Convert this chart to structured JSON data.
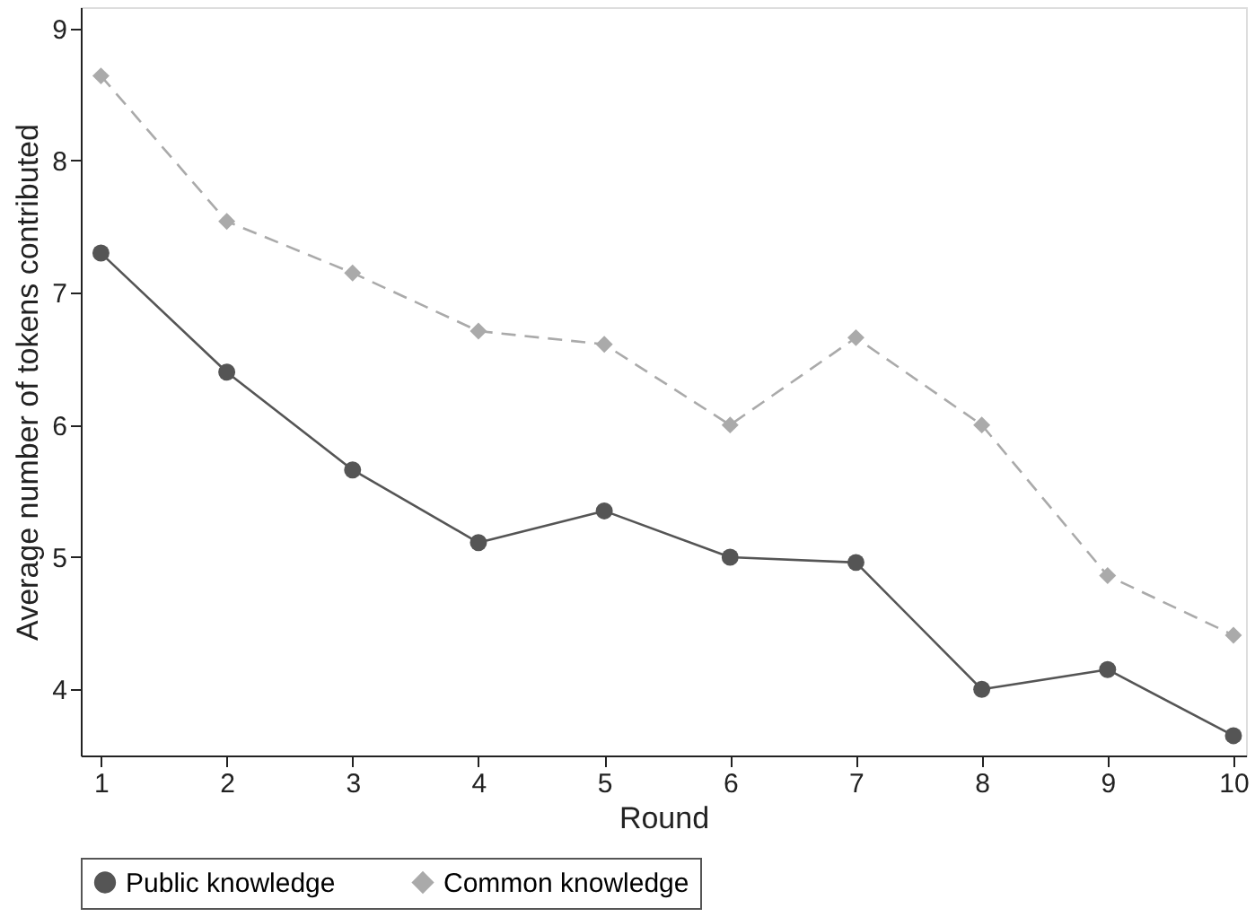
{
  "chart_data": {
    "type": "line",
    "xlabel": "Round",
    "ylabel": "Average number of tokens contributed",
    "x": [
      1,
      2,
      3,
      4,
      5,
      6,
      7,
      8,
      9,
      10
    ],
    "series": [
      {
        "name": "Public knowledge",
        "color": "#555555",
        "marker": "circle",
        "line_style": "solid",
        "values": [
          7.3,
          6.4,
          5.66,
          5.11,
          5.35,
          5.0,
          4.96,
          4.0,
          4.15,
          3.65
        ]
      },
      {
        "name": "Common knowledge",
        "color": "#aaaaaa",
        "marker": "diamond",
        "line_style": "dashed",
        "values": [
          8.64,
          7.54,
          7.15,
          6.71,
          6.61,
          6.0,
          6.66,
          6.0,
          4.86,
          4.41
        ]
      }
    ],
    "xlim": [
      0.84,
      10.1
    ],
    "ylim": [
      3.5,
      9.16
    ],
    "xticks": [
      1,
      2,
      3,
      4,
      5,
      6,
      7,
      8,
      9,
      10
    ],
    "yticks": [
      4,
      5,
      6,
      7,
      8,
      9
    ],
    "grid": false,
    "legend": "bottom"
  }
}
